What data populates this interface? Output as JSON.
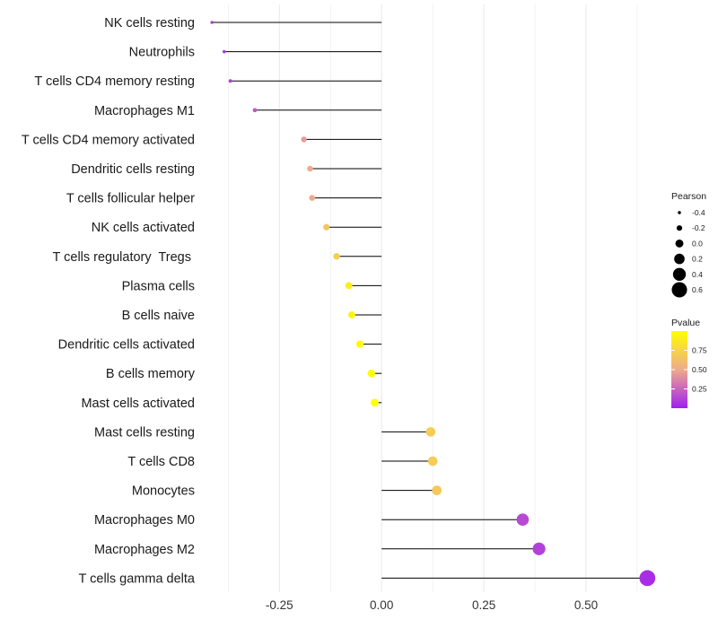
{
  "chart_data": {
    "type": "lollipop",
    "categories": [
      "NK cells resting",
      "Neutrophils",
      "T cells CD4 memory resting",
      "Macrophages M1",
      "T cells CD4 memory activated",
      "Dendritic cells resting",
      "T cells follicular helper",
      "NK cells activated",
      "T cells regulatory  Tregs ",
      "Plasma cells",
      "B cells naive",
      "Dendritic cells activated",
      "B cells memory",
      "Mast cells activated",
      "Mast cells resting",
      "T cells CD8",
      "Monocytes",
      "Macrophages M0",
      "Macrophages M2",
      "T cells gamma delta"
    ],
    "values": [
      -0.415,
      -0.385,
      -0.37,
      -0.31,
      -0.19,
      -0.175,
      -0.17,
      -0.135,
      -0.11,
      -0.08,
      -0.073,
      -0.053,
      -0.025,
      -0.017,
      0.12,
      0.125,
      0.135,
      0.345,
      0.385,
      0.65
    ],
    "pvalues": [
      0.05,
      0.1,
      0.12,
      0.2,
      0.45,
      0.5,
      0.5,
      0.65,
      0.72,
      0.9,
      0.93,
      0.97,
      1.0,
      1.0,
      0.7,
      0.7,
      0.68,
      0.15,
      0.12,
      0.05
    ],
    "x_ticks": [
      -0.25,
      0,
      0.25,
      0.5
    ],
    "x_tick_labels": [
      "-0.25",
      "0.00",
      "0.25",
      "0.50"
    ],
    "xlim": [
      -0.435,
      0.68
    ],
    "title": "",
    "xlabel": "",
    "ylabel": "",
    "legend": {
      "position": "right",
      "size_title": "Pearson",
      "size_breaks": [
        -0.4,
        -0.2,
        0.0,
        0.2,
        0.4,
        0.6
      ],
      "size_labels": [
        "-0.4",
        "-0.2",
        "0.0",
        "0.2",
        "0.4",
        "0.6"
      ],
      "color_title": "Pvalue",
      "color_breaks": [
        0.75,
        0.5,
        0.25
      ],
      "color_labels": [
        "0.75",
        "0.50",
        "0.25"
      ],
      "color_range": [
        0.0,
        1.0
      ],
      "color_low": "#a020f0",
      "color_mid": "#eeaa8c",
      "color_high": "#ffff00"
    },
    "colors": {
      "stem": "#000000",
      "gridline": "#ebebeb",
      "background": "#ffffff"
    }
  }
}
